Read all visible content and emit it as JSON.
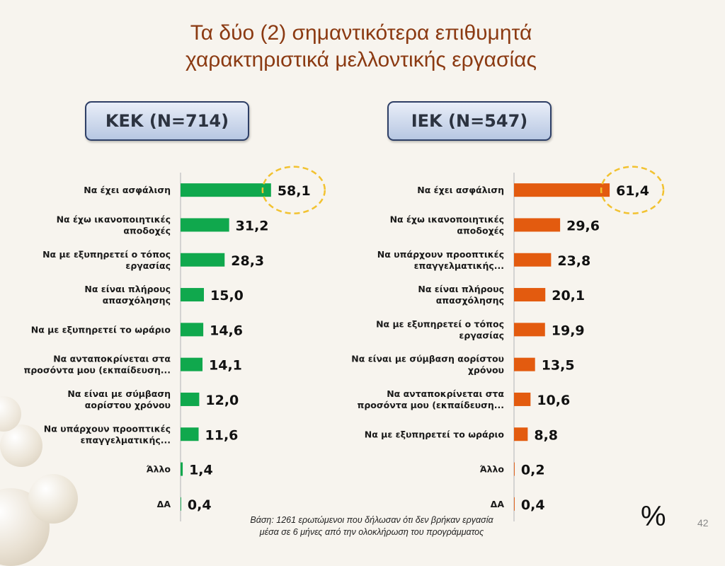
{
  "slide": {
    "title_line1": "Τα δύο (2) σημαντικότερα επιθυμητά",
    "title_line2": "χαρακτηριστικά μελλοντικής εργασίας",
    "footnote_line1": "Βάση: 1261 ερωτώμενοι που δήλωσαν ότι δεν βρήκαν εργασία",
    "footnote_line2": "μέσα σε 6 μήνες από την ολοκλήρωση του προγράμματος",
    "unit_symbol": "%",
    "page_number": "42"
  },
  "chart_data": [
    {
      "type": "bar",
      "orientation": "horizontal",
      "title": "ΚΕΚ (N=714)",
      "color": "#10a84d",
      "highlight_ring_color": "#f2c230",
      "highlight_index": 0,
      "categories": [
        [
          "Να έχει ασφάλιση"
        ],
        [
          "Να έχω ικανοποιητικές",
          "αποδοχές"
        ],
        [
          "Να με εξυπηρετεί ο τόπος",
          "εργασίας"
        ],
        [
          "Να είναι πλήρους",
          "απασχόλησης"
        ],
        [
          "Να με εξυπηρετεί το ωράριο"
        ],
        [
          "Να ανταποκρίνεται στα",
          "προσόντα μου (εκπαίδευση..."
        ],
        [
          "Να είναι με σύμβαση",
          "αορίστου χρόνου"
        ],
        [
          "Να υπάρχουν προοπτικές",
          "επαγγελματικής..."
        ],
        [
          "Άλλο"
        ],
        [
          "ΔΑ"
        ]
      ],
      "values": [
        58.1,
        31.2,
        28.3,
        15.0,
        14.6,
        14.1,
        12.0,
        11.6,
        1.4,
        0.4
      ],
      "value_labels": [
        "58,1",
        "31,2",
        "28,3",
        "15,0",
        "14,6",
        "14,1",
        "12,0",
        "11,6",
        "1,4",
        "0,4"
      ]
    },
    {
      "type": "bar",
      "orientation": "horizontal",
      "title": "ΙΕΚ (N=547)",
      "color": "#e35b0f",
      "highlight_ring_color": "#f2c230",
      "highlight_index": 0,
      "categories": [
        [
          "Να έχει ασφάλιση"
        ],
        [
          "Να έχω ικανοποιητικές",
          "αποδοχές"
        ],
        [
          "Να υπάρχουν προοπτικές",
          "επαγγελματικής..."
        ],
        [
          "Να είναι πλήρους",
          "απασχόλησης"
        ],
        [
          "Να με εξυπηρετεί ο τόπος",
          "εργασίας"
        ],
        [
          "Να είναι με σύμβαση αορίστου",
          "χρόνου"
        ],
        [
          "Να ανταποκρίνεται στα",
          "προσόντα μου (εκπαίδευση..."
        ],
        [
          "Να με εξυπηρετεί το ωράριο"
        ],
        [
          "Άλλο"
        ],
        [
          "ΔΑ"
        ]
      ],
      "values": [
        61.4,
        29.6,
        23.8,
        20.1,
        19.9,
        13.5,
        10.6,
        8.8,
        0.2,
        0.4
      ],
      "value_labels": [
        "61,4",
        "29,6",
        "23,8",
        "20,1",
        "19,9",
        "13,5",
        "10,6",
        "8,8",
        "0,2",
        "0,4"
      ]
    }
  ]
}
